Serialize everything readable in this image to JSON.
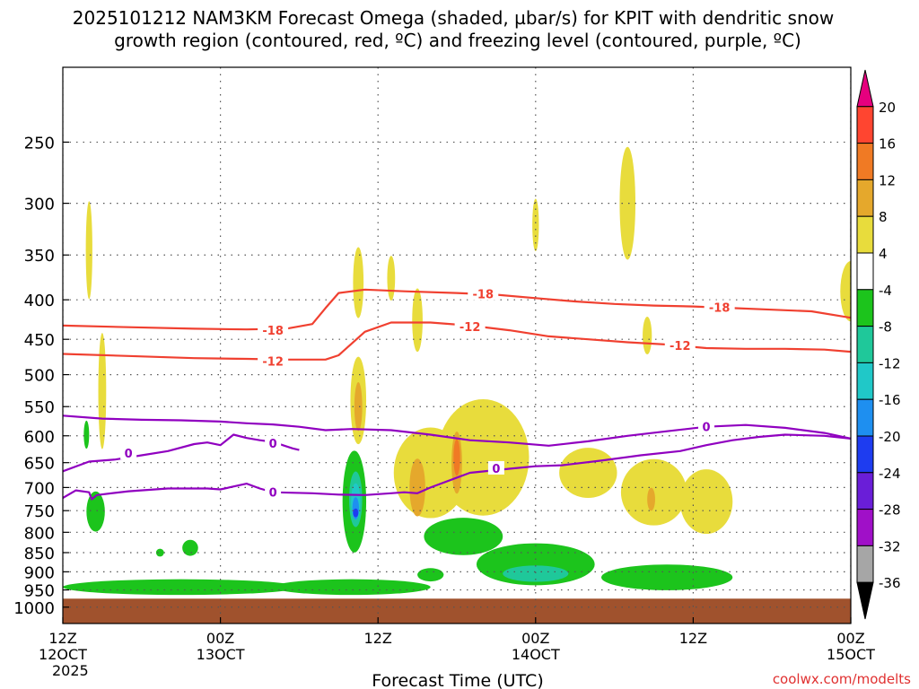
{
  "title_line1": "2025101212 NAM3KM Forecast Omega (shaded, µbar/s) for KPIT with dendritic snow",
  "title_line2": "growth region (contoured, red, ºC) and freezing level (contoured, purple, ºC)",
  "watermark": "coolwx.com/modelts",
  "chart_data": {
    "type": "heatmap",
    "xlabel": "Forecast Time (UTC)",
    "x_ticks": [
      {
        "hour": 0,
        "label1": "12Z",
        "label2": "12OCT",
        "label3": "2025"
      },
      {
        "hour": 12,
        "label1": "00Z",
        "label2": "13OCT",
        "label3": ""
      },
      {
        "hour": 24,
        "label1": "12Z",
        "label2": "",
        "label3": ""
      },
      {
        "hour": 36,
        "label1": "00Z",
        "label2": "14OCT",
        "label3": ""
      },
      {
        "hour": 48,
        "label1": "12Z",
        "label2": "",
        "label3": ""
      },
      {
        "hour": 60,
        "label1": "00Z",
        "label2": "15OCT",
        "label3": ""
      }
    ],
    "xlim_hours": [
      0,
      60
    ],
    "y_ticks": [
      250,
      300,
      350,
      400,
      450,
      500,
      550,
      600,
      650,
      700,
      750,
      800,
      850,
      900,
      950,
      1000
    ],
    "ylim_hpa": [
      200,
      1050
    ],
    "grid": true,
    "colorbar": {
      "labels": [
        "20",
        "16",
        "12",
        "8",
        "4",
        "-4",
        "-8",
        "-12",
        "-16",
        "-20",
        "-24",
        "-28",
        "-32",
        "-36"
      ],
      "bins": [
        {
          "upper": null,
          "lower": 20,
          "color": "#e6007e"
        },
        {
          "upper": 20,
          "lower": 16,
          "color": "#ff4530"
        },
        {
          "upper": 16,
          "lower": 12,
          "color": "#f07a24"
        },
        {
          "upper": 12,
          "lower": 8,
          "color": "#e5a82c"
        },
        {
          "upper": 8,
          "lower": 4,
          "color": "#e8dc3c"
        },
        {
          "upper": 4,
          "lower": -4,
          "color": "#ffffff"
        },
        {
          "upper": -4,
          "lower": -8,
          "color": "#1cc41c"
        },
        {
          "upper": -8,
          "lower": -12,
          "color": "#1fc89a"
        },
        {
          "upper": -12,
          "lower": -16,
          "color": "#20c8c8"
        },
        {
          "upper": -16,
          "lower": -20,
          "color": "#1e8ff0"
        },
        {
          "upper": -20,
          "lower": -24,
          "color": "#1e3cf0"
        },
        {
          "upper": -24,
          "lower": -28,
          "color": "#6a1ed8"
        },
        {
          "upper": -28,
          "lower": -32,
          "color": "#a010c8"
        },
        {
          "upper": -32,
          "lower": -36,
          "color": "#a6a6a6"
        },
        {
          "upper": -36,
          "lower": null,
          "color": "#000000"
        }
      ]
    },
    "ground_color": "#a0522d",
    "ground_top_hpa": 975,
    "contours": [
      {
        "level": "-18",
        "color": "#f04030",
        "points": [
          [
            0,
            432
          ],
          [
            5,
            434
          ],
          [
            10,
            436
          ],
          [
            14,
            437
          ],
          [
            17,
            436
          ],
          [
            19,
            430
          ],
          [
            20,
            410
          ],
          [
            21,
            392
          ],
          [
            23,
            388
          ],
          [
            26,
            390
          ],
          [
            30,
            392
          ],
          [
            33,
            394
          ],
          [
            36,
            398
          ],
          [
            39,
            402
          ],
          [
            42,
            405
          ],
          [
            45,
            407
          ],
          [
            48,
            408
          ],
          [
            51,
            410
          ],
          [
            54,
            412
          ],
          [
            57,
            414
          ],
          [
            60,
            422
          ]
        ],
        "labels": [
          {
            "hour": 16,
            "hpa": 438
          },
          {
            "hour": 32,
            "hpa": 393
          },
          {
            "hour": 50,
            "hpa": 409
          }
        ]
      },
      {
        "level": "-12",
        "color": "#f04030",
        "points": [
          [
            0,
            470
          ],
          [
            5,
            473
          ],
          [
            10,
            476
          ],
          [
            14,
            477
          ],
          [
            17,
            478
          ],
          [
            20,
            478
          ],
          [
            21,
            472
          ],
          [
            23,
            440
          ],
          [
            25,
            428
          ],
          [
            28,
            428
          ],
          [
            31,
            432
          ],
          [
            34,
            438
          ],
          [
            37,
            446
          ],
          [
            40,
            450
          ],
          [
            43,
            454
          ],
          [
            46,
            457
          ],
          [
            49,
            462
          ],
          [
            52,
            463
          ],
          [
            55,
            463
          ],
          [
            58,
            464
          ],
          [
            60,
            467
          ]
        ],
        "labels": [
          {
            "hour": 16,
            "hpa": 480
          },
          {
            "hour": 31,
            "hpa": 433
          },
          {
            "hour": 47,
            "hpa": 458
          }
        ]
      },
      {
        "level": "0",
        "color": "#9000c0",
        "points": [
          [
            0,
            565
          ],
          [
            3,
            570
          ],
          [
            6,
            572
          ],
          [
            9,
            573
          ],
          [
            12,
            575
          ],
          [
            14,
            578
          ],
          [
            16,
            580
          ],
          [
            18,
            584
          ],
          [
            20,
            590
          ],
          [
            22,
            588
          ],
          [
            25,
            590
          ],
          [
            28,
            598
          ],
          [
            31,
            608
          ],
          [
            34,
            612
          ],
          [
            37,
            618
          ],
          [
            40,
            610
          ],
          [
            43,
            600
          ],
          [
            46,
            592
          ],
          [
            49,
            584
          ],
          [
            52,
            581
          ],
          [
            55,
            586
          ],
          [
            58,
            595
          ],
          [
            60,
            605
          ]
        ],
        "labels": [
          {
            "hour": 49,
            "hpa": 584
          }
        ]
      },
      {
        "level": "0",
        "color": "#9000c0",
        "points": [
          [
            0,
            667
          ],
          [
            2,
            648
          ],
          [
            4,
            644
          ],
          [
            6,
            636
          ],
          [
            8,
            628
          ],
          [
            10,
            615
          ],
          [
            11,
            612
          ],
          [
            12,
            617
          ],
          [
            13,
            598
          ],
          [
            14,
            604
          ],
          [
            15,
            608
          ],
          [
            16,
            611
          ],
          [
            17,
            619
          ],
          [
            17.5,
            623
          ],
          [
            18,
            626
          ]
        ],
        "labels": [
          {
            "hour": 5,
            "hpa": 632
          },
          {
            "hour": 16,
            "hpa": 613
          }
        ]
      },
      {
        "level": "0",
        "color": "#9000c0",
        "points": [
          [
            0,
            722
          ],
          [
            1,
            706
          ],
          [
            2,
            710
          ],
          [
            2.2,
            725
          ],
          [
            2.6,
            716
          ],
          [
            5,
            708
          ],
          [
            8,
            702
          ],
          [
            11,
            702
          ],
          [
            12,
            704
          ],
          [
            14,
            692
          ],
          [
            15,
            702
          ],
          [
            16,
            710
          ],
          [
            19,
            712
          ],
          [
            21,
            715
          ],
          [
            23,
            716
          ],
          [
            25,
            712
          ],
          [
            26,
            710
          ],
          [
            27,
            712
          ],
          [
            28,
            700
          ],
          [
            31,
            670
          ],
          [
            34,
            662
          ],
          [
            36,
            657
          ],
          [
            38,
            655
          ],
          [
            41,
            646
          ],
          [
            44,
            636
          ],
          [
            47,
            628
          ],
          [
            49,
            617
          ],
          [
            51,
            608
          ],
          [
            53,
            602
          ],
          [
            55,
            598
          ],
          [
            58,
            600
          ],
          [
            60,
            605
          ]
        ],
        "labels": [
          {
            "hour": 16,
            "hpa": 710
          },
          {
            "hour": 33,
            "hpa": 661
          }
        ]
      }
    ],
    "omega_areas": [
      {
        "value_bin": "4 to 8",
        "color": "#e8dc3c",
        "hour": 2.0,
        "hpa": 345,
        "half_hours": 0.25,
        "half_hpa": 50
      },
      {
        "value_bin": "4 to 8",
        "color": "#e8dc3c",
        "hour": 3.0,
        "hpa": 525,
        "half_hours": 0.3,
        "half_hpa": 90
      },
      {
        "value_bin": "4 to 8",
        "color": "#e8dc3c",
        "hour": 22.5,
        "hpa": 380,
        "half_hours": 0.4,
        "half_hpa": 40
      },
      {
        "value_bin": "4 to 8",
        "color": "#e8dc3c",
        "hour": 22.5,
        "hpa": 540,
        "half_hours": 0.6,
        "half_hpa": 70
      },
      {
        "value_bin": "4 to 8",
        "color": "#e8dc3c",
        "hour": 25,
        "hpa": 375,
        "half_hours": 0.3,
        "half_hpa": 25
      },
      {
        "value_bin": "4 to 8",
        "color": "#e8dc3c",
        "hour": 27,
        "hpa": 425,
        "half_hours": 0.4,
        "half_hpa": 40
      },
      {
        "value_bin": "4 to 8",
        "color": "#e8dc3c",
        "hour": 36,
        "hpa": 320,
        "half_hours": 0.25,
        "half_hpa": 25
      },
      {
        "value_bin": "4 to 8",
        "color": "#e8dc3c",
        "hour": 43,
        "hpa": 300,
        "half_hours": 0.6,
        "half_hpa": 50
      },
      {
        "value_bin": "4 to 8",
        "color": "#e8dc3c",
        "hour": 44.5,
        "hpa": 445,
        "half_hours": 0.35,
        "half_hpa": 25
      },
      {
        "value_bin": "4 to 8",
        "color": "#e8dc3c",
        "hour": 60,
        "hpa": 390,
        "half_hours": 0.8,
        "half_hpa": 35
      },
      {
        "value_bin": "4 to 8",
        "color": "#e8dc3c",
        "hour": 28,
        "hpa": 670,
        "half_hours": 2.8,
        "half_hpa": 90
      },
      {
        "value_bin": "4 to 8",
        "color": "#e8dc3c",
        "hour": 32,
        "hpa": 640,
        "half_hours": 3.5,
        "half_hpa": 110
      },
      {
        "value_bin": "4 to 8",
        "color": "#e8dc3c",
        "hour": 40,
        "hpa": 670,
        "half_hours": 2.2,
        "half_hpa": 50
      },
      {
        "value_bin": "4 to 8",
        "color": "#e8dc3c",
        "hour": 45,
        "hpa": 710,
        "half_hours": 2.5,
        "half_hpa": 70
      },
      {
        "value_bin": "4 to 8",
        "color": "#e8dc3c",
        "hour": 49,
        "hpa": 730,
        "half_hours": 2.0,
        "half_hpa": 70
      },
      {
        "value_bin": "8 to 12",
        "color": "#e5a82c",
        "hour": 22.5,
        "hpa": 550,
        "half_hours": 0.3,
        "half_hpa": 40
      },
      {
        "value_bin": "8 to 12",
        "color": "#e5a82c",
        "hour": 27,
        "hpa": 700,
        "half_hours": 0.6,
        "half_hpa": 60
      },
      {
        "value_bin": "8 to 12",
        "color": "#e5a82c",
        "hour": 30,
        "hpa": 650,
        "half_hours": 0.4,
        "half_hpa": 60
      },
      {
        "value_bin": "8 to 12",
        "color": "#e5a82c",
        "hour": 44.8,
        "hpa": 725,
        "half_hours": 0.3,
        "half_hpa": 25
      },
      {
        "value_bin": "12 to 16",
        "color": "#f07a24",
        "hour": 30,
        "hpa": 640,
        "half_hours": 0.25,
        "half_hpa": 35
      },
      {
        "value_bin": "-4 to -8",
        "color": "#1cc41c",
        "hour": 22.2,
        "hpa": 730,
        "half_hours": 0.9,
        "half_hpa": 110
      },
      {
        "value_bin": "-4 to -8",
        "color": "#1cc41c",
        "hour": 2.5,
        "hpa": 752,
        "half_hours": 0.7,
        "half_hpa": 45
      },
      {
        "value_bin": "-4 to -8",
        "color": "#1cc41c",
        "hour": 1.8,
        "hpa": 598,
        "half_hours": 0.2,
        "half_hpa": 25
      },
      {
        "value_bin": "-4 to -8",
        "color": "#1cc41c",
        "hour": 9.7,
        "hpa": 838,
        "half_hours": 0.6,
        "half_hpa": 20
      },
      {
        "value_bin": "-4 to -8",
        "color": "#1cc41c",
        "hour": 7.4,
        "hpa": 850,
        "half_hours": 0.3,
        "half_hpa": 10
      },
      {
        "value_bin": "-4 to -8",
        "color": "#1cc41c",
        "hour": 30.5,
        "hpa": 810,
        "half_hours": 3.0,
        "half_hpa": 45
      },
      {
        "value_bin": "-4 to -8",
        "color": "#1cc41c",
        "hour": 36,
        "hpa": 880,
        "half_hours": 4.5,
        "half_hpa": 55
      },
      {
        "value_bin": "-4 to -8",
        "color": "#1cc41c",
        "hour": 46,
        "hpa": 915,
        "half_hours": 5.0,
        "half_hpa": 35
      },
      {
        "value_bin": "-4 to -8",
        "color": "#1cc41c",
        "hour": 9,
        "hpa": 942,
        "half_hours": 9.0,
        "half_hpa": 22
      },
      {
        "value_bin": "-4 to -8",
        "color": "#1cc41c",
        "hour": 22,
        "hpa": 942,
        "half_hours": 6.0,
        "half_hpa": 22
      },
      {
        "value_bin": "-4 to -8",
        "color": "#1cc41c",
        "hour": 28,
        "hpa": 908,
        "half_hours": 1.0,
        "half_hpa": 18
      },
      {
        "value_bin": "-8 to -12",
        "color": "#1fc89a",
        "hour": 36,
        "hpa": 905,
        "half_hours": 2.5,
        "half_hpa": 22
      },
      {
        "value_bin": "-8 to -12",
        "color": "#1fc89a",
        "hour": 22.3,
        "hpa": 725,
        "half_hours": 0.5,
        "half_hpa": 60
      },
      {
        "value_bin": "-12 to -16",
        "color": "#20c8c8",
        "hour": 22.3,
        "hpa": 730,
        "half_hours": 0.35,
        "half_hpa": 40
      },
      {
        "value_bin": "-16 to -20",
        "color": "#1e8ff0",
        "hour": 22.3,
        "hpa": 745,
        "half_hours": 0.25,
        "half_hpa": 25
      },
      {
        "value_bin": "-20 to -24",
        "color": "#1e3cf0",
        "hour": 22.3,
        "hpa": 755,
        "half_hours": 0.12,
        "half_hpa": 10
      }
    ]
  }
}
